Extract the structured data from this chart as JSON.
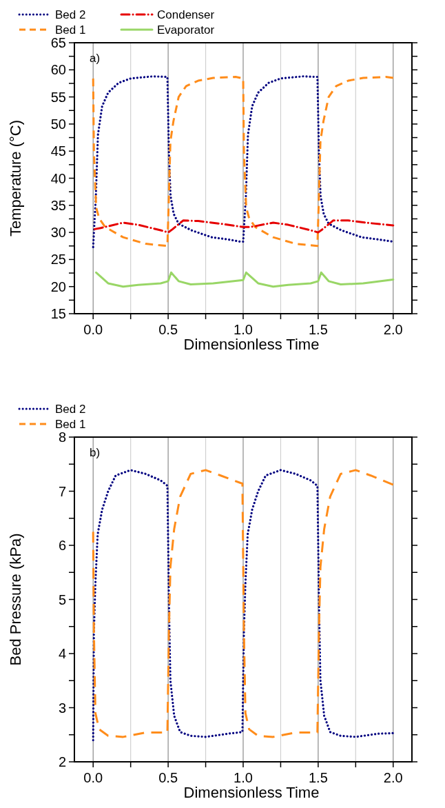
{
  "chart_data": [
    {
      "type": "line",
      "xlabel": "Dimensionless Time",
      "ylabel": "Temperature (°C)",
      "annotations": [
        "a)"
      ],
      "legend": "top left",
      "grid": "x",
      "xlim": [
        -0.125,
        2.125
      ],
      "xticks": [
        {
          "value": 0,
          "label": "0.0"
        },
        {
          "value": 0.25,
          "label": null
        },
        {
          "value": 0.5,
          "label": "0.5"
        },
        {
          "value": 0.75,
          "label": null
        },
        {
          "value": 1,
          "label": "1.0"
        },
        {
          "value": 1.25,
          "label": null
        },
        {
          "value": 1.5,
          "label": "1.5"
        },
        {
          "value": 1.75,
          "label": null
        },
        {
          "value": 2,
          "label": "2.0"
        }
      ],
      "ylim": [
        15,
        65
      ],
      "yticks": [
        15,
        {
          "value": 17.5,
          "label": null
        },
        20,
        {
          "value": 22.5,
          "label": null
        },
        25,
        {
          "value": 27.5,
          "label": null
        },
        30,
        {
          "value": 32.5,
          "label": null
        },
        35,
        {
          "value": 37.5,
          "label": null
        },
        40,
        {
          "value": 42.5,
          "label": null
        },
        45,
        {
          "value": 47.5,
          "label": null
        },
        50,
        {
          "value": 52.5,
          "label": null
        },
        55,
        {
          "value": 57.5,
          "label": null
        },
        60,
        {
          "value": 62.5,
          "label": null
        },
        65
      ],
      "series": [
        {
          "name": "Bed 2",
          "color": "#000080",
          "line_style": "dotted",
          "x": [
            0,
            0.018,
            0.032,
            0.06,
            0.1,
            0.17,
            0.25,
            0.4,
            0.495,
            0.505,
            0.516,
            0.537,
            0.57,
            0.654,
            0.79,
            0.9,
            0.98,
            1.0,
            1.018,
            1.032,
            1.06,
            1.1,
            1.17,
            1.25,
            1.4,
            1.495,
            1.505,
            1.516,
            1.537,
            1.57,
            1.654,
            1.79,
            1.9,
            2.0
          ],
          "values": [
            27.3,
            36.7,
            48,
            53.3,
            55.8,
            57.6,
            58.4,
            58.8,
            58.7,
            44.8,
            36.7,
            33.4,
            31.6,
            30.4,
            29.1,
            28.7,
            28.3,
            28.3,
            36.7,
            48,
            53.3,
            55.8,
            57.6,
            58.4,
            58.8,
            58.7,
            44.8,
            36.7,
            33.4,
            31.6,
            30.4,
            29.1,
            28.7,
            28.3
          ]
        },
        {
          "name": "Bed 1",
          "color": "#ff8c1a",
          "line_style": "dashed",
          "x": [
            0,
            0.005,
            0.02,
            0.04,
            0.08,
            0.2,
            0.35,
            0.495,
            0.505,
            0.515,
            0.535,
            0.57,
            0.62,
            0.7,
            0.8,
            0.95,
            1.0,
            1.005,
            1.02,
            1.04,
            1.08,
            1.2,
            1.35,
            1.495,
            1.505,
            1.515,
            1.535,
            1.57,
            1.62,
            1.7,
            1.8,
            1.95,
            2.0
          ],
          "values": [
            58.4,
            44.8,
            34.6,
            32.6,
            31,
            29.1,
            27.9,
            27.5,
            36.7,
            46.8,
            50.5,
            55,
            57,
            58,
            58.5,
            58.7,
            58.4,
            44.8,
            34.6,
            32.6,
            31,
            29.1,
            27.9,
            27.5,
            36.7,
            46.8,
            50.5,
            55,
            57,
            58,
            58.5,
            58.7,
            58.5
          ]
        },
        {
          "name": "Condenser",
          "color": "#e60000",
          "line_style": "dashdot",
          "x": [
            0.01,
            0.05,
            0.2,
            0.3,
            0.45,
            0.5,
            0.53,
            0.6,
            0.7,
            0.85,
            1.0,
            1.05,
            1.2,
            1.3,
            1.45,
            1.5,
            1.53,
            1.6,
            1.7,
            1.85,
            2.0
          ],
          "values": [
            30.6,
            30.8,
            31.8,
            31.4,
            30.4,
            30.0,
            30.6,
            32.2,
            32.1,
            31.6,
            31.0,
            31.0,
            31.8,
            31.4,
            30.4,
            30.0,
            30.6,
            32.2,
            32.2,
            31.7,
            31.3
          ]
        },
        {
          "name": "Evaporator",
          "color": "#99d666",
          "line_style": "solid",
          "x": [
            0.02,
            0.1,
            0.2,
            0.3,
            0.45,
            0.5,
            0.52,
            0.57,
            0.65,
            0.8,
            1.0,
            1.02,
            1.1,
            1.2,
            1.3,
            1.45,
            1.5,
            1.52,
            1.57,
            1.65,
            1.8,
            2.0
          ],
          "values": [
            22.6,
            20.6,
            20.0,
            20.3,
            20.6,
            21.0,
            22.6,
            21,
            20.4,
            20.6,
            21.2,
            22.6,
            20.6,
            20.0,
            20.3,
            20.6,
            21.0,
            22.6,
            21,
            20.4,
            20.6,
            21.3
          ]
        }
      ]
    },
    {
      "type": "line",
      "xlabel": "Dimensionless Time",
      "ylabel": "Bed Pressure (kPa)",
      "annotations": [
        "b)"
      ],
      "legend": "top left",
      "grid": "x",
      "xlim": [
        -0.125,
        2.125
      ],
      "xticks": [
        {
          "value": 0,
          "label": "0.0"
        },
        {
          "value": 0.25,
          "label": null
        },
        {
          "value": 0.5,
          "label": "0.5"
        },
        {
          "value": 0.75,
          "label": null
        },
        {
          "value": 1,
          "label": "1.0"
        },
        {
          "value": 1.25,
          "label": null
        },
        {
          "value": 1.5,
          "label": "1.5"
        },
        {
          "value": 1.75,
          "label": null
        },
        {
          "value": 2,
          "label": "2.0"
        }
      ],
      "ylim": [
        2,
        8
      ],
      "yticks": [
        2,
        {
          "value": 2.5,
          "label": null
        },
        3,
        {
          "value": 3.5,
          "label": null
        },
        4,
        {
          "value": 4.5,
          "label": null
        },
        5,
        {
          "value": 5.5,
          "label": null
        },
        6,
        {
          "value": 6.5,
          "label": null
        },
        7,
        {
          "value": 7.5,
          "label": null
        },
        8
      ],
      "series": [
        {
          "name": "Bed 2",
          "color": "#000080",
          "line_style": "dotted",
          "x": [
            0,
            0.005,
            0.015,
            0.03,
            0.06,
            0.1,
            0.15,
            0.25,
            0.35,
            0.45,
            0.495,
            0.505,
            0.515,
            0.54,
            0.58,
            0.65,
            0.75,
            0.9,
            0.995,
            1.005,
            1.015,
            1.03,
            1.06,
            1.1,
            1.15,
            1.25,
            1.35,
            1.45,
            1.495,
            1.505,
            1.515,
            1.54,
            1.58,
            1.65,
            1.75,
            1.9,
            2.0
          ],
          "values": [
            2.4,
            4.4,
            5.3,
            6.2,
            6.66,
            7.0,
            7.29,
            7.39,
            7.32,
            7.2,
            7.1,
            5.0,
            3.5,
            2.85,
            2.55,
            2.48,
            2.46,
            2.52,
            2.55,
            4.4,
            5.3,
            6.2,
            6.66,
            7.0,
            7.29,
            7.39,
            7.32,
            7.2,
            7.1,
            5.0,
            3.5,
            2.85,
            2.55,
            2.48,
            2.46,
            2.52,
            2.53
          ]
        },
        {
          "name": "Bed 1",
          "color": "#ff8c1a",
          "line_style": "dashed",
          "x": [
            0,
            0.005,
            0.015,
            0.04,
            0.1,
            0.2,
            0.35,
            0.495,
            0.505,
            0.515,
            0.54,
            0.58,
            0.65,
            0.75,
            0.85,
            0.995,
            1.005,
            1.015,
            1.04,
            1.1,
            1.2,
            1.35,
            1.495,
            1.505,
            1.515,
            1.54,
            1.58,
            1.65,
            1.75,
            1.85,
            2.0
          ],
          "values": [
            6.25,
            4.4,
            2.9,
            2.6,
            2.48,
            2.46,
            2.54,
            2.54,
            4.4,
            5.6,
            6.3,
            6.9,
            7.32,
            7.39,
            7.29,
            7.14,
            4.4,
            2.9,
            2.6,
            2.48,
            2.46,
            2.54,
            2.54,
            4.4,
            5.6,
            6.3,
            6.9,
            7.32,
            7.39,
            7.29,
            7.12
          ]
        }
      ]
    }
  ]
}
